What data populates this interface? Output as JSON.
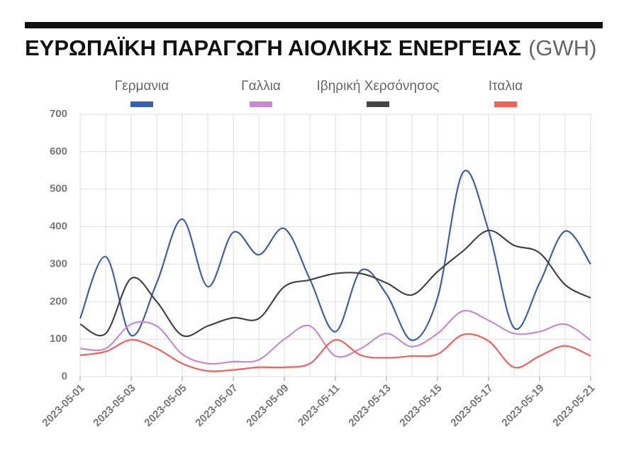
{
  "chart_data": {
    "type": "line",
    "title": "ΕΥΡΩΠΑΪΚΗ ΠΑΡΑΓΩΓΗ ΑΙΟΛΙΚΗΣ ΕΝΕΡΓΕΙΑΣ",
    "title_unit": "(GWH)",
    "x": [
      "2023-05-01",
      "2023-05-02",
      "2023-05-03",
      "2023-05-04",
      "2023-05-05",
      "2023-05-06",
      "2023-05-07",
      "2023-05-08",
      "2023-05-09",
      "2023-05-10",
      "2023-05-11",
      "2023-05-12",
      "2023-05-13",
      "2023-05-14",
      "2023-05-15",
      "2023-05-16",
      "2023-05-17",
      "2023-05-18",
      "2023-05-19",
      "2023-05-20",
      "2023-05-21"
    ],
    "xticks": [
      "2023-05-01",
      "2023-05-03",
      "2023-05-05",
      "2023-05-07",
      "2023-05-09",
      "2023-05-11",
      "2023-05-13",
      "2023-05-15",
      "2023-05-17",
      "2023-05-19",
      "2023-05-21"
    ],
    "series": [
      {
        "name": "Γερμανια",
        "color": "#3a5fb0",
        "values": [
          155,
          320,
          110,
          250,
          420,
          240,
          385,
          325,
          395,
          260,
          120,
          283,
          220,
          97,
          210,
          545,
          390,
          130,
          250,
          388,
          300
        ]
      },
      {
        "name": "Γαλλια",
        "color": "#c58ad0",
        "values": [
          75,
          75,
          140,
          135,
          60,
          35,
          40,
          45,
          100,
          135,
          55,
          75,
          115,
          80,
          115,
          175,
          150,
          115,
          120,
          140,
          97
        ]
      },
      {
        "name": "Ιβηρική Χερσόνησος",
        "color": "#444444",
        "values": [
          140,
          115,
          262,
          200,
          110,
          135,
          157,
          155,
          240,
          258,
          275,
          275,
          250,
          218,
          280,
          335,
          390,
          350,
          330,
          245,
          210
        ]
      },
      {
        "name": "Ιταλια",
        "color": "#f0625a",
        "values": [
          57,
          67,
          98,
          75,
          35,
          15,
          18,
          25,
          25,
          35,
          98,
          57,
          50,
          55,
          60,
          112,
          95,
          25,
          55,
          82,
          55
        ]
      }
    ],
    "ylim": [
      0,
      700
    ],
    "yticks": [
      0,
      100,
      200,
      300,
      400,
      500,
      600,
      700
    ],
    "grid": true
  }
}
